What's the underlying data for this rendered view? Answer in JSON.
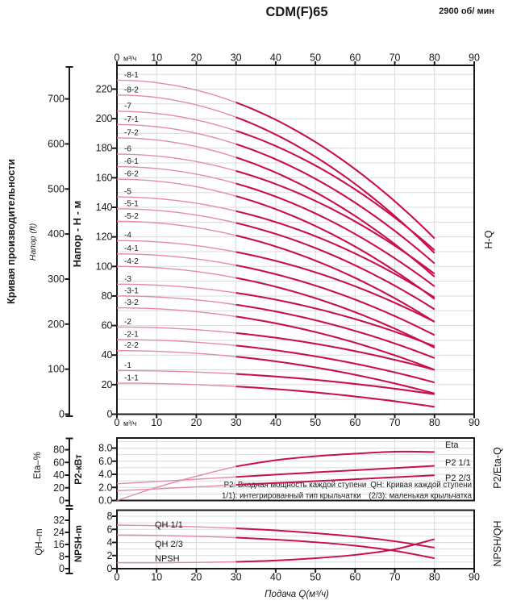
{
  "title": "CDM(F)65",
  "rpm": "2900 об/ мин",
  "flow_unit": "м³/ч",
  "labels": {
    "left_outer": "Кривая производительности",
    "napor_ft": "Напор (ft)",
    "napor_m": "Напор - Н - м",
    "eta_axis": "Eta–%",
    "p2_axis": "P2-кВт",
    "qh_axis": "QH–m",
    "npsh_axis": "NPSH-m",
    "hq": "H-Q",
    "p2_eta_q": "P2/Eta-Q",
    "npsh_qh": "NPSH/QH",
    "x_title": "Подача Q(м³/ч)",
    "eta_curve": "Eta",
    "p2_11": "P2 1/1",
    "p2_23": "P2 2/3",
    "qh_11": "QH 1/1",
    "qh_23": "QH 2/3",
    "npsh_curve": "NPSH",
    "note1": "P2: Входная мощность каждой ступени QH: Кривая каждой ступени",
    "note2": "1/1): интегрированный тип крыльчатки  (2/3): маленькая крыльчатка"
  },
  "colors": {
    "curve_dark": "#c8104a",
    "curve_light": "#e58ba4",
    "grid": "#d7dcdf",
    "frame": "#1a1a1a"
  },
  "chart_data": [
    {
      "type": "line",
      "name": "H-Q",
      "title": "Кривая производительности CDM(F)65, 2900 об/мин",
      "xlabel": "Подача Q(м³/ч)",
      "ylabel": "Напор - Н - м",
      "xlim": [
        0,
        90
      ],
      "ylim": [
        0,
        236
      ],
      "x_ticks": [
        0,
        10,
        20,
        30,
        40,
        50,
        60,
        70,
        80,
        90
      ],
      "y_ticks_m": [
        0,
        20,
        40,
        60,
        80,
        100,
        120,
        140,
        160,
        180,
        200,
        220
      ],
      "y_ticks_ft": [
        0,
        100,
        200,
        300,
        400,
        500,
        600,
        700
      ],
      "q_end": 80,
      "model": "H(q) = h0 - (h0 - h80) * (q/80)^2",
      "series": [
        {
          "label": "-8-1",
          "h0": 226,
          "h80": 119
        },
        {
          "label": "-8-2",
          "h0": 216,
          "h80": 109
        },
        {
          "label": "-7",
          "h0": 205,
          "h80": 111
        },
        {
          "label": "-7-1",
          "h0": 196,
          "h80": 102
        },
        {
          "label": "-7-2",
          "h0": 187,
          "h80": 93
        },
        {
          "label": "-6",
          "h0": 176,
          "h80": 95
        },
        {
          "label": "-6-1",
          "h0": 167.5,
          "h80": 86.5
        },
        {
          "label": "-6-2",
          "h0": 159,
          "h80": 78
        },
        {
          "label": "-5",
          "h0": 147,
          "h80": 79
        },
        {
          "label": "-5-1",
          "h0": 139,
          "h80": 71
        },
        {
          "label": "-5-2",
          "h0": 130.5,
          "h80": 62.5
        },
        {
          "label": "-4",
          "h0": 117.5,
          "h80": 62.5
        },
        {
          "label": "-4-1",
          "h0": 108.5,
          "h80": 53.5
        },
        {
          "label": "-4-2",
          "h0": 100,
          "h80": 45
        },
        {
          "label": "-3",
          "h0": 88,
          "h80": 46
        },
        {
          "label": "-3-1",
          "h0": 80,
          "h80": 38
        },
        {
          "label": "-3-2",
          "h0": 72,
          "h80": 30
        },
        {
          "label": "-2",
          "h0": 59,
          "h80": 30
        },
        {
          "label": "-2-1",
          "h0": 50.5,
          "h80": 21.5
        },
        {
          "label": "-2-2",
          "h0": 43,
          "h80": 14
        },
        {
          "label": "-1",
          "h0": 29.5,
          "h80": 13.5
        },
        {
          "label": "-1-1",
          "h0": 21,
          "h80": 5
        }
      ]
    },
    {
      "type": "line",
      "name": "P2/Eta-Q",
      "x": [
        0,
        10,
        20,
        30,
        40,
        50,
        60,
        70,
        80
      ],
      "eta_ticks": [
        0,
        20,
        40,
        60,
        80
      ],
      "p2_ticks": [
        "0.0",
        "2.0",
        "4.0",
        "6.0",
        "8.0"
      ],
      "series": [
        {
          "label": "Eta",
          "unit": "%",
          "values": [
            0,
            20,
            37,
            52,
            61.5,
            67.5,
            71.5,
            74.5,
            74
          ]
        },
        {
          "label": "P2 1/1",
          "unit": "кВт",
          "values": [
            2.55,
            2.9,
            3.25,
            3.6,
            3.95,
            4.3,
            4.62,
            4.95,
            5.3
          ]
        },
        {
          "label": "P2 2/3",
          "unit": "кВт",
          "values": [
            1.5,
            1.78,
            2.08,
            2.38,
            2.67,
            2.95,
            3.25,
            3.55,
            3.85
          ]
        }
      ]
    },
    {
      "type": "line",
      "name": "NPSH/QH",
      "x": [
        0,
        10,
        20,
        30,
        40,
        50,
        60,
        70,
        80
      ],
      "qh_ticks": [
        0,
        8,
        16,
        24,
        32
      ],
      "npsh_ticks": [
        0,
        2,
        4,
        6,
        8
      ],
      "series": [
        {
          "label": "QH 1/1",
          "unit": "m",
          "values": [
            28.8,
            28.4,
            27.7,
            26.7,
            25.3,
            23.5,
            21.2,
            18.1,
            13.9
          ]
        },
        {
          "label": "QH 2/3",
          "unit": "m",
          "values": [
            22.3,
            22.0,
            21.4,
            20.5,
            19.2,
            17.5,
            15.2,
            11.8,
            6.9
          ]
        },
        {
          "label": "NPSH",
          "unit": "m",
          "values": [
            0.9,
            0.9,
            0.95,
            1.05,
            1.25,
            1.6,
            2.1,
            2.95,
            4.5
          ]
        }
      ]
    }
  ]
}
